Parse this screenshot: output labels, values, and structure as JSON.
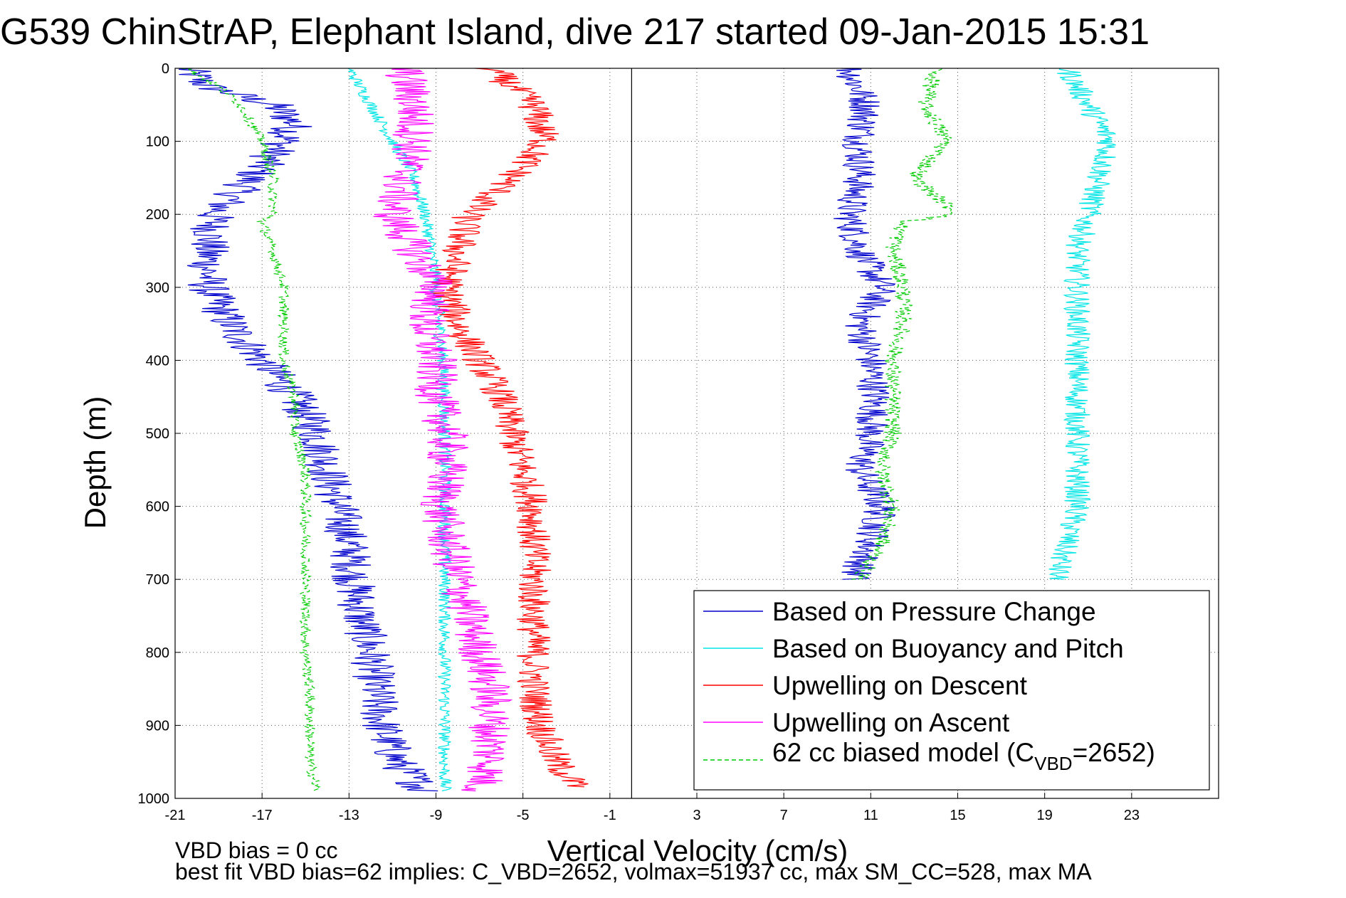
{
  "chart_data": {
    "type": "line",
    "title": "G539 ChinStrAP, Elephant Island, dive 217 started 09-Jan-2015 15:31",
    "xlabel": "Vertical Velocity (cm/s)",
    "ylabel": "Depth (m)",
    "xlim": [
      -21,
      27
    ],
    "ylim": [
      0,
      1000
    ],
    "y_reversed": true,
    "grid": true,
    "legend_position": "bottom-right",
    "xticks": [
      "-21",
      "-17",
      "-13",
      "-9",
      "-5",
      "-1",
      "3",
      "7",
      "11",
      "15",
      "19",
      "23"
    ],
    "yticks": [
      "0",
      "100",
      "200",
      "300",
      "400",
      "500",
      "600",
      "700",
      "800",
      "900",
      "1000"
    ],
    "reference_line_x": 0,
    "notes": [
      "VBD bias = 0 cc",
      "best fit VBD bias=62 implies: C_VBD=2652, volmax=51937 cc, max SM_CC=528, max MA"
    ],
    "legend": {
      "entries": [
        {
          "label": "Based on Pressure Change",
          "label_sub": "",
          "label_end": ""
        },
        {
          "label": "Based on Buoyancy and Pitch",
          "label_sub": "",
          "label_end": ""
        },
        {
          "label": "Upwelling on Descent",
          "label_sub": "",
          "label_end": ""
        },
        {
          "label": "Upwelling on Ascent",
          "label_sub": "",
          "label_end": ""
        },
        {
          "label": "62 cc biased model (C",
          "label_sub": "VBD",
          "label_end": "=2652)"
        }
      ]
    },
    "series": [
      {
        "name": "Based on Pressure Change",
        "color": "#0000cc",
        "dashed": false,
        "depth": [
          0,
          25,
          50,
          75,
          100,
          150,
          200,
          250,
          300,
          350,
          400,
          450,
          500,
          550,
          600,
          650,
          700,
          750,
          800,
          850,
          900,
          950,
          990
        ],
        "velocity": [
          -20.5,
          -19.5,
          -16.5,
          -15.5,
          -16.0,
          -17.5,
          -19.2,
          -19.5,
          -19.5,
          -18.5,
          -17.0,
          -15.5,
          -14.5,
          -14.0,
          -13.5,
          -13.0,
          -12.8,
          -12.5,
          -12.0,
          -11.8,
          -11.5,
          -10.8,
          -9.5
        ],
        "depth_b": [
          0,
          50,
          100,
          150,
          200,
          250,
          300,
          350,
          400,
          450,
          500,
          550,
          600,
          650,
          700
        ],
        "velocity_b": [
          10.0,
          10.8,
          10.5,
          10.5,
          10.0,
          10.5,
          11.5,
          10.5,
          11.0,
          11.2,
          11.0,
          10.5,
          11.5,
          11.0,
          10.2
        ]
      },
      {
        "name": "Based on Buoyancy and Pitch",
        "color": "#00e5e5",
        "dashed": false,
        "depth": [
          0,
          50,
          100,
          150,
          200,
          250,
          300,
          400,
          500,
          600,
          700,
          800,
          900,
          990
        ],
        "velocity": [
          -13.0,
          -12.0,
          -11.0,
          -10.0,
          -9.5,
          -9.2,
          -9.0,
          -8.7,
          -8.6,
          -8.6,
          -8.6,
          -8.6,
          -8.6,
          -8.6
        ],
        "depth_b": [
          0,
          50,
          100,
          150,
          200,
          250,
          300,
          400,
          500,
          600,
          700
        ],
        "velocity_b": [
          20.0,
          21.0,
          22.0,
          21.5,
          21.0,
          20.5,
          20.5,
          20.5,
          20.5,
          20.5,
          19.5
        ]
      },
      {
        "name": "Upwelling on Descent",
        "color": "#ff0000",
        "dashed": false,
        "depth": [
          0,
          50,
          100,
          150,
          200,
          250,
          300,
          350,
          400,
          450,
          500,
          550,
          600,
          650,
          700,
          750,
          800,
          850,
          900,
          950,
          985
        ],
        "velocity": [
          -6.5,
          -4.5,
          -4.0,
          -5.5,
          -7.5,
          -8.0,
          -8.5,
          -8.0,
          -7.0,
          -6.0,
          -5.5,
          -5.0,
          -4.5,
          -4.5,
          -4.5,
          -4.5,
          -4.5,
          -4.5,
          -4.2,
          -3.5,
          -2.5
        ]
      },
      {
        "name": "Upwelling on Ascent",
        "color": "#ff00ff",
        "dashed": false,
        "depth": [
          0,
          50,
          100,
          150,
          200,
          250,
          300,
          350,
          400,
          450,
          500,
          550,
          600,
          650,
          700,
          750,
          800,
          850,
          900,
          950,
          990
        ],
        "velocity": [
          -10.5,
          -10.0,
          -10.0,
          -10.5,
          -11.0,
          -10.0,
          -9.0,
          -9.5,
          -9.0,
          -9.0,
          -8.5,
          -8.5,
          -8.8,
          -8.5,
          -8.0,
          -7.5,
          -7.0,
          -6.5,
          -6.5,
          -6.5,
          -7.0
        ]
      },
      {
        "name": "62 cc biased model (CVBD=2652)",
        "color": "#00cc00",
        "dashed": true,
        "depth": [
          0,
          25,
          50,
          75,
          100,
          150,
          200,
          210,
          250,
          300,
          350,
          400,
          450,
          500,
          550,
          600,
          650,
          700,
          750,
          800,
          850,
          900,
          950,
          990
        ],
        "velocity": [
          -20.5,
          -19.0,
          -18.0,
          -17.5,
          -17.0,
          -16.5,
          -16.5,
          -17.0,
          -16.5,
          -16.0,
          -16.0,
          -16.0,
          -15.5,
          -15.5,
          -15.0,
          -15.0,
          -15.0,
          -15.0,
          -15.0,
          -15.0,
          -14.8,
          -14.8,
          -14.8,
          -14.5
        ],
        "depth_b": [
          0,
          50,
          100,
          150,
          200,
          210,
          250,
          300,
          350,
          400,
          450,
          500,
          550,
          600,
          650,
          700
        ],
        "velocity_b": [
          14.0,
          13.5,
          14.5,
          13.0,
          15.0,
          12.5,
          12.0,
          12.5,
          12.5,
          12.0,
          12.0,
          12.0,
          11.5,
          12.0,
          11.5,
          10.5
        ]
      }
    ]
  }
}
